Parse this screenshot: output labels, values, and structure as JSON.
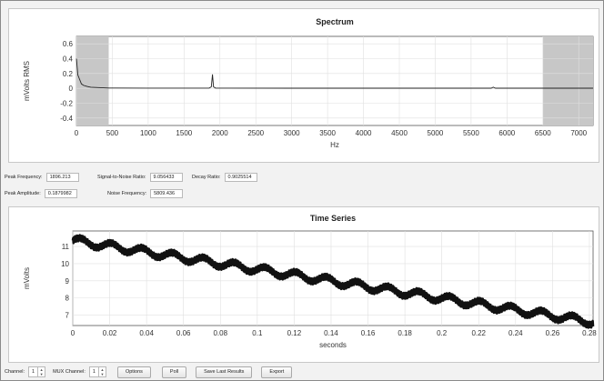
{
  "spectrum": {
    "title": "Spectrum",
    "ylabel": "mVolts RMS",
    "xlabel": "Hz"
  },
  "readouts": {
    "peak_frequency_label": "Peak Frequency:",
    "peak_frequency_value": "1896.213",
    "snr_label": "Signal-to-Noise Ratio:",
    "snr_value": "9.056433",
    "decay_label": "Decay Ratio:",
    "decay_value": "0.9025514",
    "peak_amplitude_label": "Peak Amplitude:",
    "peak_amplitude_value": "0.1879982",
    "noise_frequency_label": "Noise Frequency:",
    "noise_frequency_value": "5809.436"
  },
  "timeseries": {
    "title": "Time Series",
    "ylabel": "mVolts",
    "xlabel": "seconds"
  },
  "controls": {
    "channel_label": "Channel:",
    "channel_value": "1",
    "mux_label": "MUX Channel:",
    "mux_value": "1",
    "options_label": "Options",
    "poll_label": "Poll",
    "save_label": "Save Last Results",
    "export_label": "Export"
  },
  "chart_data": [
    {
      "type": "line",
      "title": "Spectrum",
      "xlabel": "Hz",
      "ylabel": "mVolts RMS",
      "xlim": [
        0,
        7200
      ],
      "ylim": [
        -0.5,
        0.7
      ],
      "x_ticks": [
        0,
        500,
        1000,
        1500,
        2000,
        2500,
        3000,
        3500,
        4000,
        4500,
        5000,
        5500,
        6000,
        6500,
        7000
      ],
      "y_ticks": [
        0.6,
        0.4,
        0.2,
        0,
        -0.2,
        -0.4
      ],
      "grid": true,
      "shaded_regions": [
        [
          0,
          450
        ],
        [
          6500,
          7200
        ]
      ],
      "x": [
        0,
        20,
        40,
        70,
        100,
        150,
        200,
        300,
        450,
        1000,
        1850,
        1880,
        1896,
        1910,
        1940,
        3000,
        4000,
        5780,
        5809,
        5840,
        7200
      ],
      "values": [
        0.4,
        0.18,
        0.13,
        0.06,
        0.04,
        0.025,
        0.015,
        0.01,
        0.005,
        0.003,
        0.003,
        0.02,
        0.188,
        0.02,
        0.003,
        0.002,
        0.002,
        0.002,
        0.015,
        0.002,
        0.002
      ]
    },
    {
      "type": "line",
      "title": "Time Series",
      "xlabel": "seconds",
      "ylabel": "mVolts",
      "xlim": [
        0,
        0.282
      ],
      "ylim": [
        6.4,
        11.9
      ],
      "x_ticks": [
        0,
        0.02,
        0.04,
        0.06,
        0.08,
        0.1,
        0.12,
        0.14,
        0.16,
        0.18,
        0.2,
        0.22,
        0.24,
        0.26,
        0.28
      ],
      "y_ticks": [
        11,
        10,
        9,
        8,
        7
      ],
      "grid": true,
      "start_value": 11.35,
      "end_value": 6.6,
      "oscillation_amplitude": 0.2,
      "oscillation_frequency": 1896
    }
  ]
}
